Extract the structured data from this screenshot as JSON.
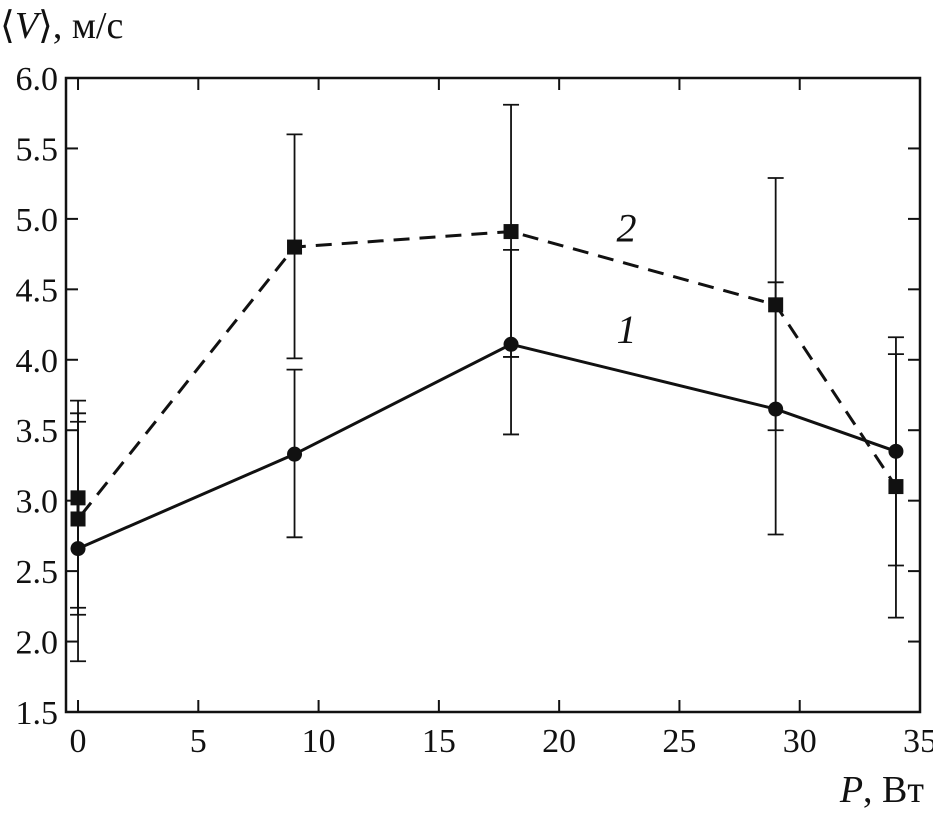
{
  "chart_data": {
    "type": "line",
    "ylabel_parts": [
      "⟨",
      "V",
      "⟩, м/с"
    ],
    "xlabel_parts": [
      "P",
      ", Вт"
    ],
    "xlim": [
      -0.5,
      35
    ],
    "ylim": [
      1.5,
      6.0
    ],
    "xticks": [
      0,
      5,
      10,
      15,
      20,
      25,
      30,
      35
    ],
    "yticks": [
      1.5,
      2.0,
      2.5,
      3.0,
      3.5,
      4.0,
      4.5,
      5.0,
      5.5,
      6.0
    ],
    "ytick_labels": [
      "1.5",
      "2.0",
      "2.5",
      "3.0",
      "3.5",
      "4.0",
      "4.5",
      "5.0",
      "5.5",
      "6.0"
    ],
    "grid": false,
    "series": [
      {
        "name": "1",
        "marker": "circle",
        "line_style": "solid",
        "label_at": [
          22.8,
          4.12
        ],
        "points": [
          {
            "x": 0,
            "y": 2.66,
            "err_low": 1.86,
            "err_high": 3.62
          },
          {
            "x": 9,
            "y": 3.33,
            "err_low": 2.74,
            "err_high": 3.93
          },
          {
            "x": 18,
            "y": 4.11,
            "err_low": 3.47,
            "err_high": 4.78
          },
          {
            "x": 29,
            "y": 3.65,
            "err_low": 2.76,
            "err_high": 4.55
          },
          {
            "x": 34,
            "y": 3.35,
            "err_low": 2.54,
            "err_high": 4.16
          }
        ]
      },
      {
        "name": "2",
        "marker": "square",
        "line_style": "dashed",
        "label_at": [
          22.8,
          4.84
        ],
        "points": [
          {
            "x": 0,
            "y": 3.02,
            "err_low": 2.24,
            "err_high": 3.71
          },
          {
            "x": 0,
            "y": 2.87,
            "err_low": 2.19,
            "err_high": 3.56
          },
          {
            "x": 9,
            "y": 4.8,
            "err_low": 4.01,
            "err_high": 5.6
          },
          {
            "x": 18,
            "y": 4.91,
            "err_low": 4.02,
            "err_high": 5.81
          },
          {
            "x": 29,
            "y": 4.39,
            "err_low": 3.5,
            "err_high": 5.29
          },
          {
            "x": 34,
            "y": 3.1,
            "err_low": 2.17,
            "err_high": 4.04
          }
        ]
      }
    ]
  }
}
